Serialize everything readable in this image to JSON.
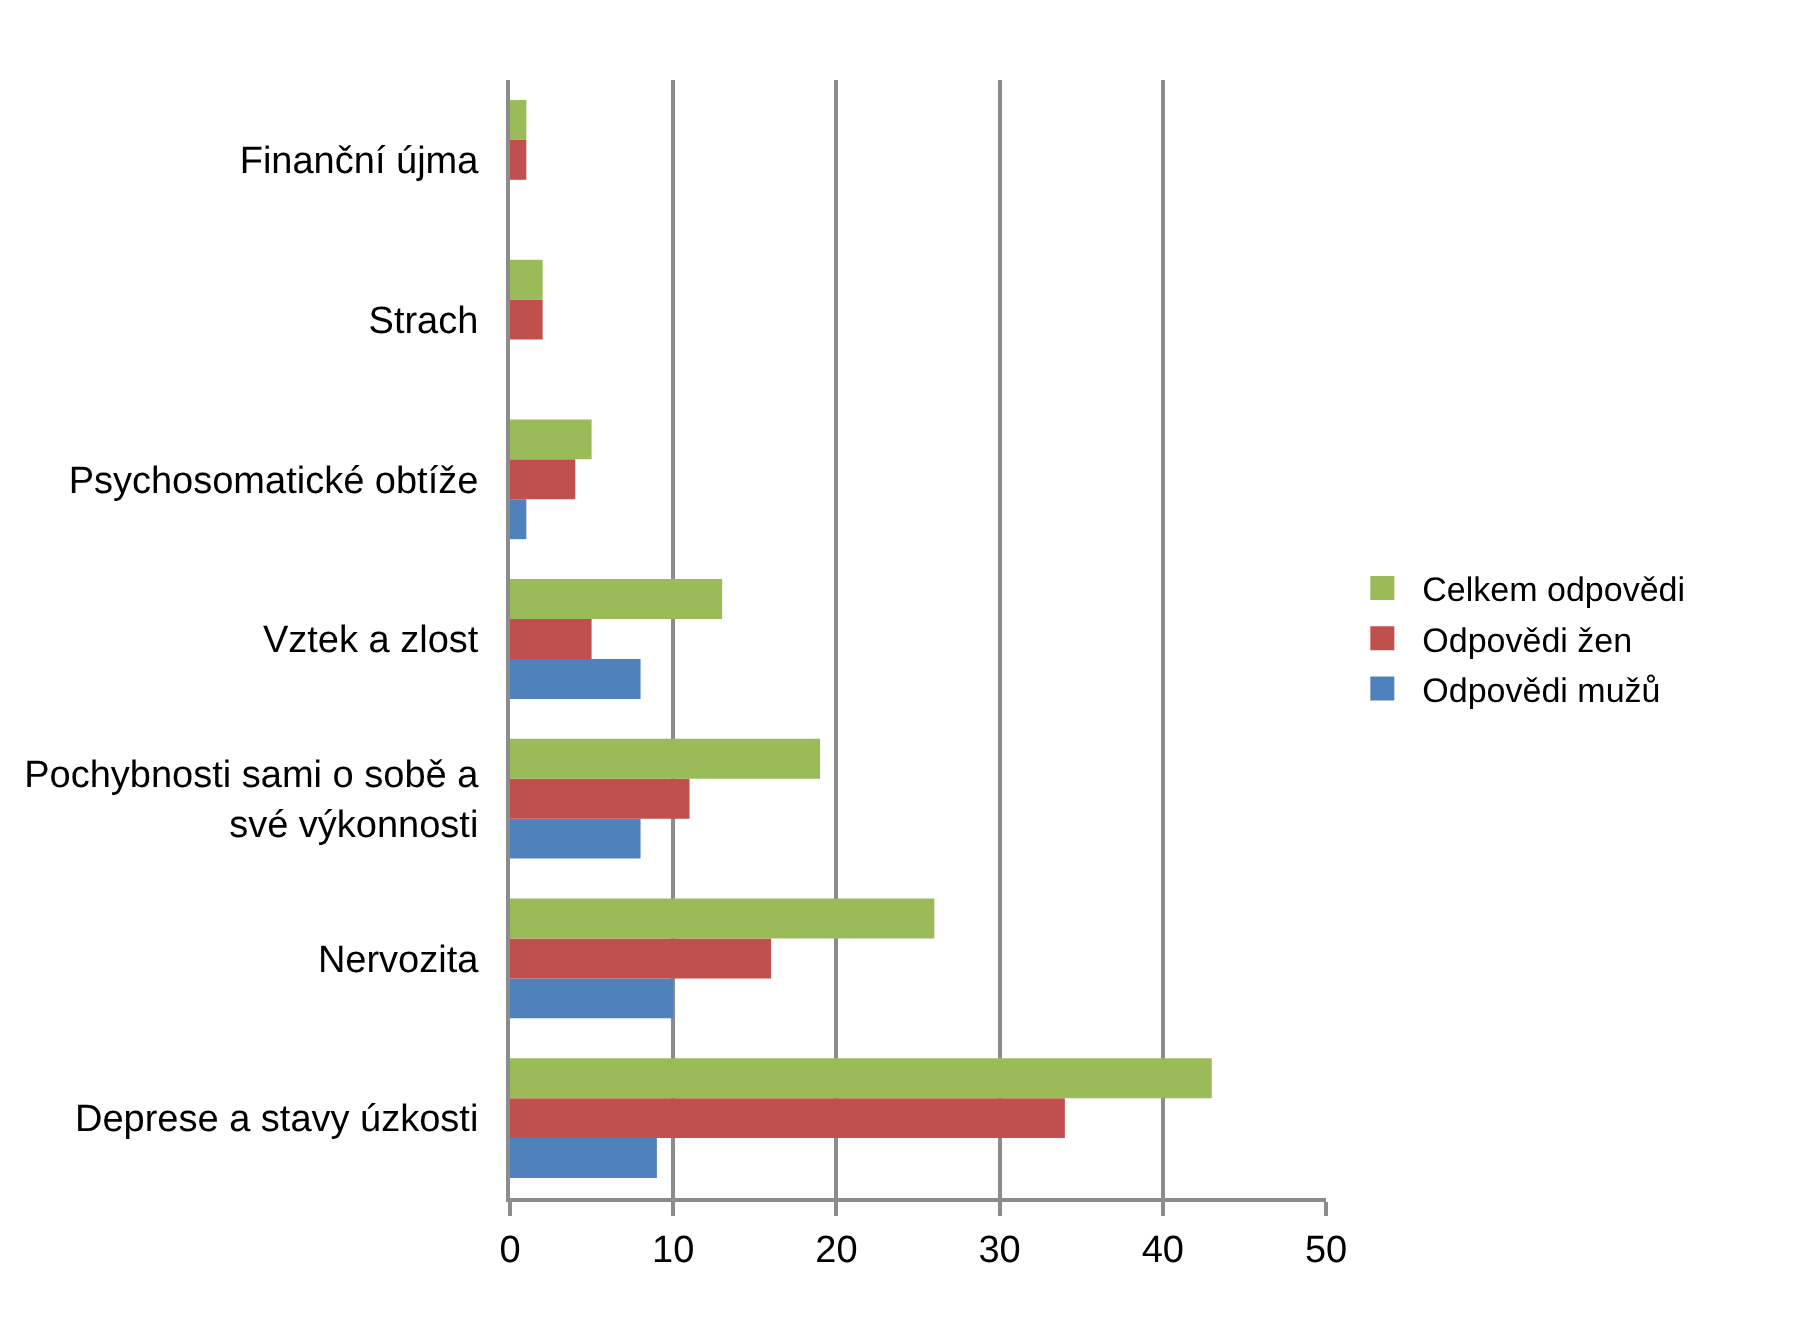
{
  "chart_data": {
    "type": "bar",
    "orientation": "horizontal",
    "categories": [
      "Finanční újma",
      "Strach",
      "Psychosomatické obtíže",
      "Vztek a zlost",
      "Pochybnosti sami o sobě a své výkonnosti",
      "Nervozita",
      "Deprese a stavy úzkosti"
    ],
    "series": [
      {
        "name": "Odpovědi mužů",
        "color": "#4f81bd",
        "values": [
          0,
          0,
          1,
          8,
          8,
          10,
          9
        ]
      },
      {
        "name": "Odpovědi žen",
        "color": "#c0504d",
        "values": [
          1,
          2,
          4,
          5,
          11,
          16,
          34
        ]
      },
      {
        "name": "Celkem odpovědi",
        "color": "#9bbb59",
        "values": [
          1,
          2,
          5,
          13,
          19,
          26,
          43
        ]
      }
    ],
    "xlim": [
      0,
      50
    ],
    "xticks": [
      0,
      10,
      20,
      30,
      40,
      50
    ],
    "grid": "x",
    "legend": "right"
  }
}
